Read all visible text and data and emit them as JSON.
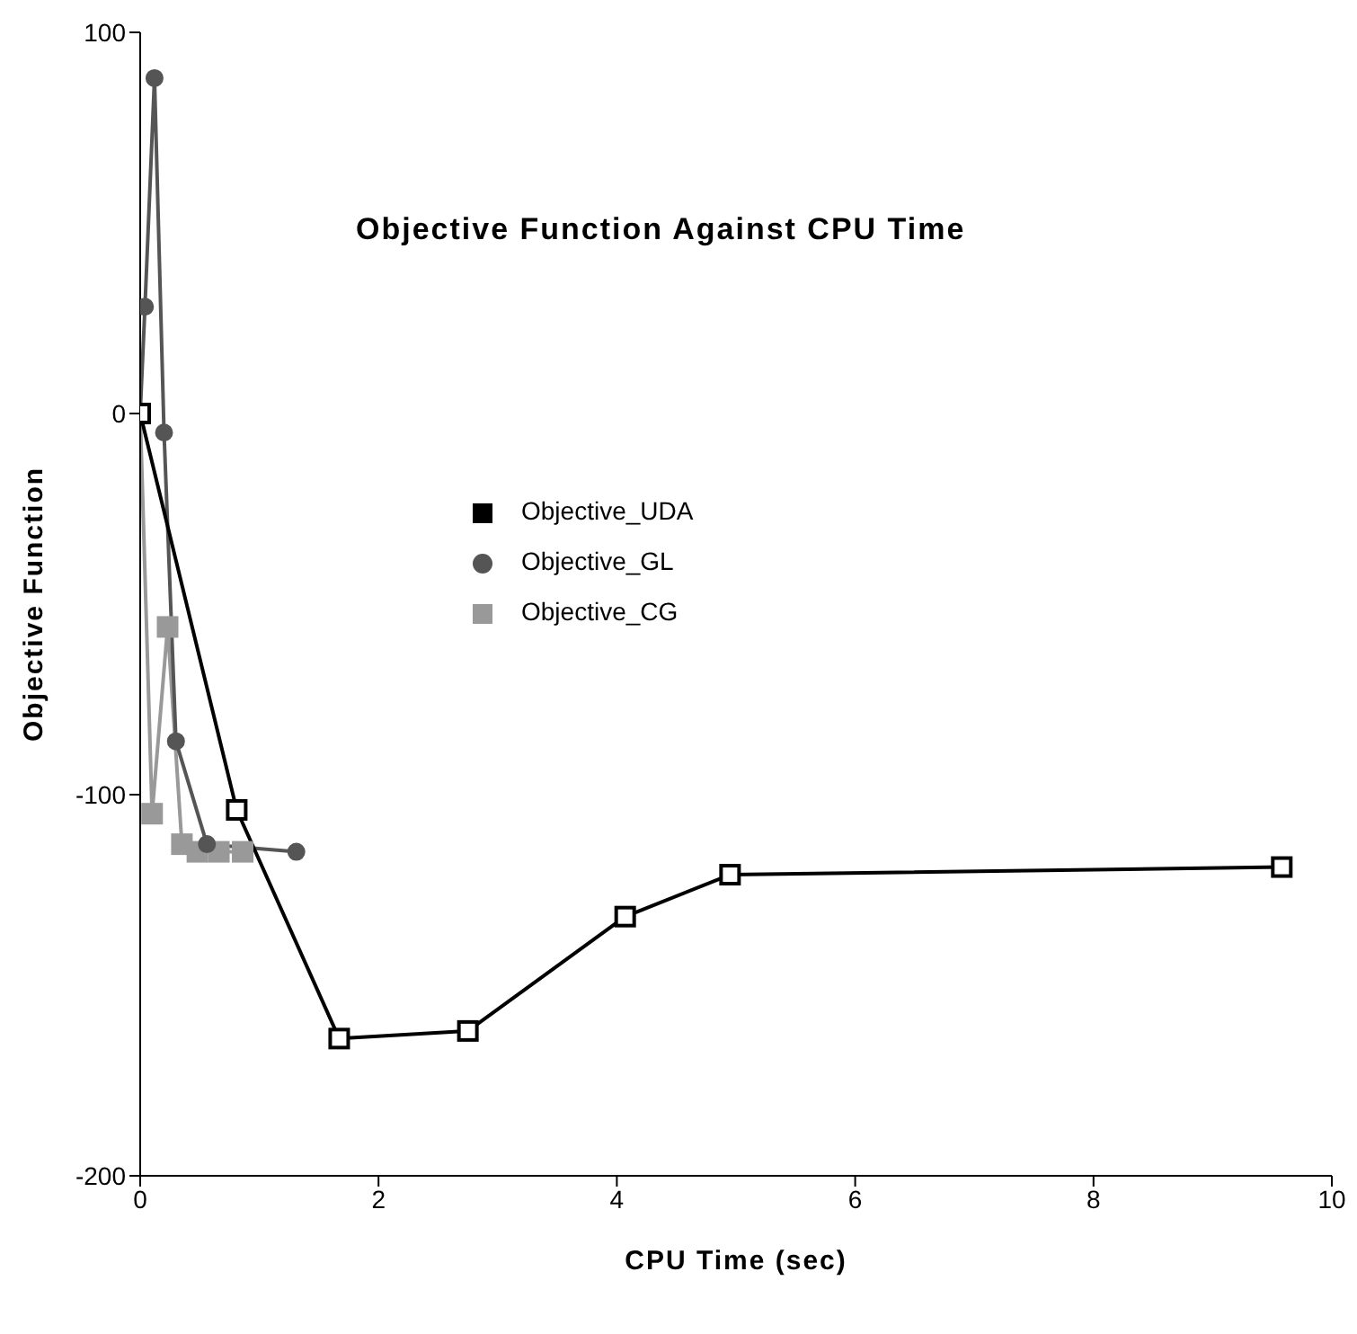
{
  "chart_data": {
    "type": "line",
    "title": "Objective Function Against CPU Time",
    "xlabel": "CPU Time (sec)",
    "ylabel": "Objective Function",
    "xlim": [
      0,
      10
    ],
    "xticks": [
      0,
      2,
      4,
      6,
      8,
      10
    ],
    "ylim": [
      -200,
      100
    ],
    "yticks": [
      -200,
      -100,
      0,
      100
    ],
    "grid": false,
    "legend": "top",
    "series": [
      {
        "name": "Objective_UDA",
        "color": "#000000",
        "marker": "square",
        "x": [
          0,
          0.81,
          1.67,
          2.75,
          4.07,
          4.95,
          9.58
        ],
        "values": [
          0,
          -104,
          -164,
          -162,
          -132,
          -121,
          -119
        ]
      },
      {
        "name": "Objective_GL",
        "color": "#555555",
        "marker": "circle",
        "x": [
          0,
          0.04,
          0.12,
          0.2,
          0.3,
          0.56,
          1.31
        ],
        "values": [
          0,
          28,
          88,
          -5,
          -86,
          -113,
          -115
        ]
      },
      {
        "name": "Objective_CG",
        "color": "#999999",
        "marker": "square",
        "x": [
          0,
          0.1,
          0.23,
          0.35,
          0.48,
          0.66,
          0.86
        ],
        "values": [
          0,
          -105,
          -56,
          -113,
          -115,
          -115,
          -115
        ]
      }
    ]
  }
}
